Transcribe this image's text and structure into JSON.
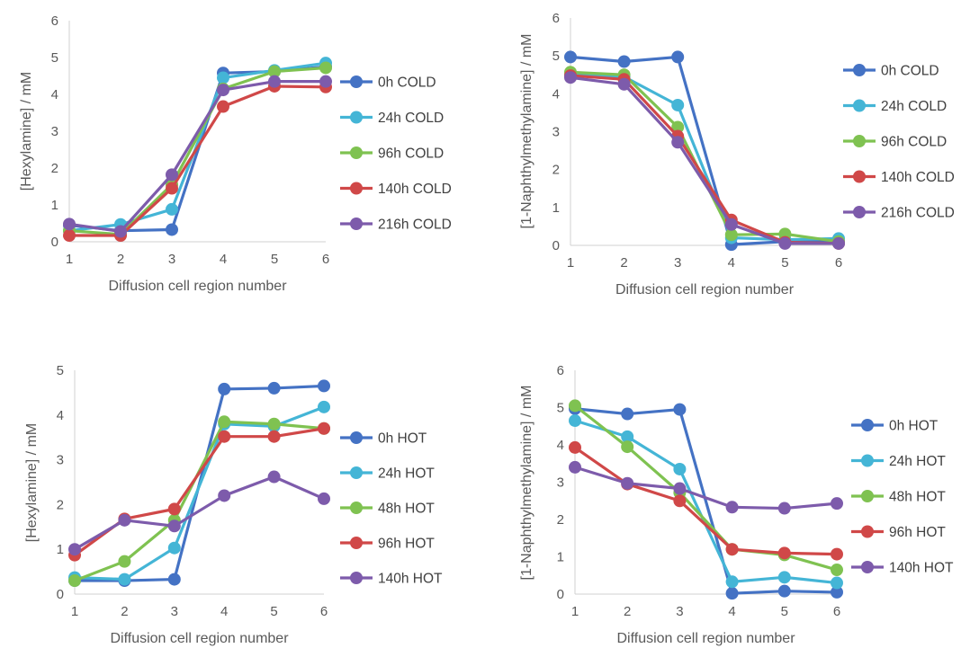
{
  "chart_data": [
    {
      "id": "panel-hexylamine-cold",
      "type": "line",
      "x": [
        1,
        2,
        3,
        4,
        5,
        6
      ],
      "xlabel": "Diffusion cell region number",
      "ylabel": "[Hexylamine] / mM",
      "xlim": [
        1,
        6
      ],
      "ylim": [
        0,
        6
      ],
      "yticks": [
        0,
        1,
        2,
        3,
        4,
        5,
        6
      ],
      "grid": false,
      "legend": "right",
      "series": [
        {
          "name": "0h COLD",
          "color": "#4472c4",
          "values": [
            0.45,
            0.3,
            0.33,
            4.58,
            4.62,
            4.75
          ]
        },
        {
          "name": "24h COLD",
          "color": "#44b5d6",
          "values": [
            0.3,
            0.47,
            0.88,
            4.45,
            4.65,
            4.85
          ]
        },
        {
          "name": "96h COLD",
          "color": "#7fc251",
          "values": [
            0.3,
            0.2,
            1.55,
            4.15,
            4.62,
            4.72
          ]
        },
        {
          "name": "140h COLD",
          "color": "#d04848",
          "values": [
            0.17,
            0.17,
            1.45,
            3.67,
            4.22,
            4.2
          ]
        },
        {
          "name": "216h COLD",
          "color": "#7d5bab",
          "values": [
            0.48,
            0.28,
            1.82,
            4.12,
            4.35,
            4.35
          ]
        }
      ]
    },
    {
      "id": "panel-naphthylmethylamine-cold",
      "type": "line",
      "x": [
        1,
        2,
        3,
        4,
        5,
        6
      ],
      "xlabel": "Diffusion cell region number",
      "ylabel": "[1-Naphthylmethylamine] / mM",
      "xlim": [
        1,
        6
      ],
      "ylim": [
        0,
        6
      ],
      "yticks": [
        0,
        1,
        2,
        3,
        4,
        5,
        6
      ],
      "grid": false,
      "legend": "right",
      "series": [
        {
          "name": "0h COLD",
          "color": "#4472c4",
          "values": [
            4.97,
            4.85,
            4.97,
            0.02,
            0.1,
            0.1
          ]
        },
        {
          "name": "24h COLD",
          "color": "#44b5d6",
          "values": [
            4.5,
            4.45,
            3.7,
            0.2,
            0.15,
            0.18
          ]
        },
        {
          "name": "96h COLD",
          "color": "#7fc251",
          "values": [
            4.57,
            4.5,
            3.12,
            0.28,
            0.3,
            0.1
          ]
        },
        {
          "name": "140h COLD",
          "color": "#d04848",
          "values": [
            4.48,
            4.38,
            2.88,
            0.67,
            0.08,
            0.05
          ]
        },
        {
          "name": "216h COLD",
          "color": "#7d5bab",
          "values": [
            4.43,
            4.25,
            2.72,
            0.55,
            0.05,
            0.05
          ]
        }
      ]
    },
    {
      "id": "panel-hexylamine-hot",
      "type": "line",
      "x": [
        1,
        2,
        3,
        4,
        5,
        6
      ],
      "xlabel": "Diffusion cell region number",
      "ylabel": "[Hexylamine] / mM",
      "xlim": [
        1,
        6
      ],
      "ylim": [
        0,
        5
      ],
      "yticks": [
        0,
        1,
        2,
        3,
        4,
        5
      ],
      "grid": false,
      "legend": "right",
      "series": [
        {
          "name": "0h HOT",
          "color": "#4472c4",
          "values": [
            0.3,
            0.3,
            0.33,
            4.58,
            4.6,
            4.65
          ]
        },
        {
          "name": "24h HOT",
          "color": "#44b5d6",
          "values": [
            0.37,
            0.33,
            1.03,
            3.8,
            3.75,
            4.18
          ]
        },
        {
          "name": "48h HOT",
          "color": "#7fc251",
          "values": [
            0.3,
            0.73,
            1.65,
            3.85,
            3.8,
            3.7
          ]
        },
        {
          "name": "96h HOT",
          "color": "#d04848",
          "values": [
            0.87,
            1.68,
            1.9,
            3.52,
            3.52,
            3.7
          ]
        },
        {
          "name": "140h HOT",
          "color": "#7d5bab",
          "values": [
            1.0,
            1.65,
            1.52,
            2.2,
            2.62,
            2.13
          ]
        }
      ]
    },
    {
      "id": "panel-naphthylmethylamine-hot",
      "type": "line",
      "x": [
        1,
        2,
        3,
        4,
        5,
        6
      ],
      "xlabel": "Diffusion cell region number",
      "ylabel": "[1-Naphthylmethylamine] / mM",
      "xlim": [
        1,
        6
      ],
      "ylim": [
        0,
        6
      ],
      "yticks": [
        0,
        1,
        2,
        3,
        4,
        5,
        6
      ],
      "grid": false,
      "legend": "right",
      "series": [
        {
          "name": "0h HOT",
          "color": "#4472c4",
          "values": [
            4.97,
            4.83,
            4.95,
            0.02,
            0.08,
            0.05
          ]
        },
        {
          "name": "24h HOT",
          "color": "#44b5d6",
          "values": [
            4.65,
            4.22,
            3.35,
            0.33,
            0.45,
            0.3
          ]
        },
        {
          "name": "48h HOT",
          "color": "#7fc251",
          "values": [
            5.05,
            3.95,
            2.72,
            1.2,
            1.05,
            0.65
          ]
        },
        {
          "name": "96h HOT",
          "color": "#d04848",
          "values": [
            3.93,
            2.95,
            2.5,
            1.2,
            1.1,
            1.07
          ]
        },
        {
          "name": "140h HOT",
          "color": "#7d5bab",
          "values": [
            3.4,
            2.97,
            2.83,
            2.33,
            2.3,
            2.43
          ]
        }
      ]
    }
  ]
}
